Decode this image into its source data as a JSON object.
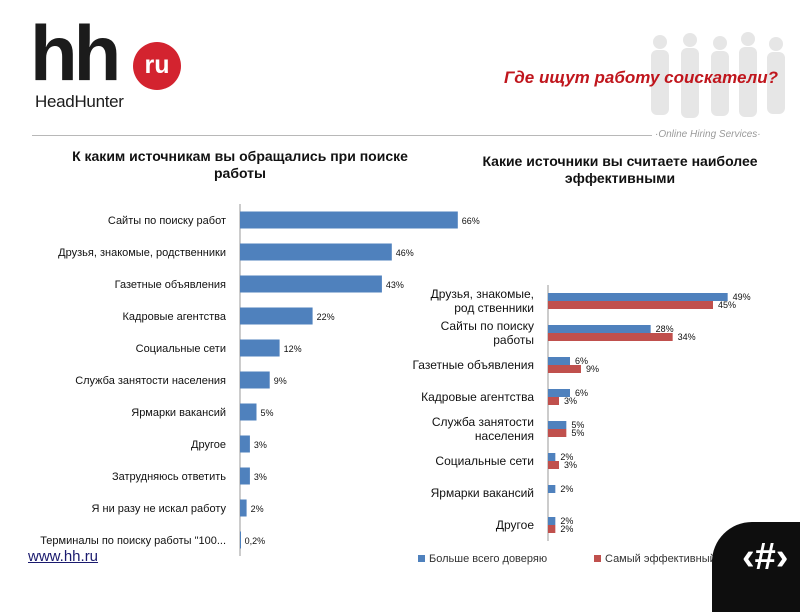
{
  "header": {
    "logo_main": "hh",
    "logo_badge": "ru",
    "logo_sub": "HeadHunter",
    "title": "Где ищут работу соискатели?",
    "tagline": "·Online Hiring Services·"
  },
  "footer": {
    "url": "www.hh.ru",
    "badge_glyph": "‹#›"
  },
  "colors": {
    "blue": "#4f81bd",
    "red": "#c0504d",
    "title_red": "#c0161d"
  },
  "chart_data": [
    {
      "type": "bar",
      "orientation": "horizontal",
      "title": "К каким источникам вы обращались при поиске работы",
      "categories": [
        "Сайты по поиску работ",
        "Друзья, знакомые, родственники",
        "Газетные объявления",
        "Кадровые агентства",
        "Социальные сети",
        "Служба занятости населения",
        "Ярмарки вакансий",
        "Другое",
        "Затрудняюсь ответить",
        "Я ни разу не искал работу",
        "Терминалы по поиску работы \"100..."
      ],
      "values": [
        66,
        46,
        43,
        22,
        12,
        9,
        5,
        3,
        3,
        2,
        0.2
      ],
      "data_labels": [
        "66%",
        "46%",
        "43%",
        "22%",
        "12%",
        "9%",
        "5%",
        "3%",
        "3%",
        "2%",
        "0,2%"
      ],
      "xlim": [
        0,
        100
      ],
      "color": "#4f81bd"
    },
    {
      "type": "bar",
      "orientation": "horizontal",
      "title": "Какие источники вы считаете наиболее эффективными",
      "categories": [
        "Друзья, знакомые, род ственники",
        "Сайты по поиску работы",
        "Газетные объявления",
        "Кадровые агентства",
        "Служба занятости населения",
        "Социальные сети",
        "Ярмарки вакансий",
        "Другое"
      ],
      "series": [
        {
          "name": "Больше всего доверяю",
          "color": "#4f81bd",
          "values": [
            49,
            28,
            6,
            6,
            5,
            2,
            2,
            2
          ],
          "labels": [
            "49%",
            "28%",
            "6%",
            "6%",
            "5%",
            "2%",
            "2%",
            "2%"
          ]
        },
        {
          "name": "Самый эффективный",
          "color": "#c0504d",
          "values": [
            45,
            34,
            9,
            3,
            5,
            3,
            null,
            2
          ],
          "labels": [
            "45%",
            "34%",
            "9%",
            "3%",
            "5%",
            "3%",
            "",
            "2%"
          ]
        }
      ],
      "xlim": [
        0,
        60
      ],
      "legend": "bottom"
    }
  ]
}
